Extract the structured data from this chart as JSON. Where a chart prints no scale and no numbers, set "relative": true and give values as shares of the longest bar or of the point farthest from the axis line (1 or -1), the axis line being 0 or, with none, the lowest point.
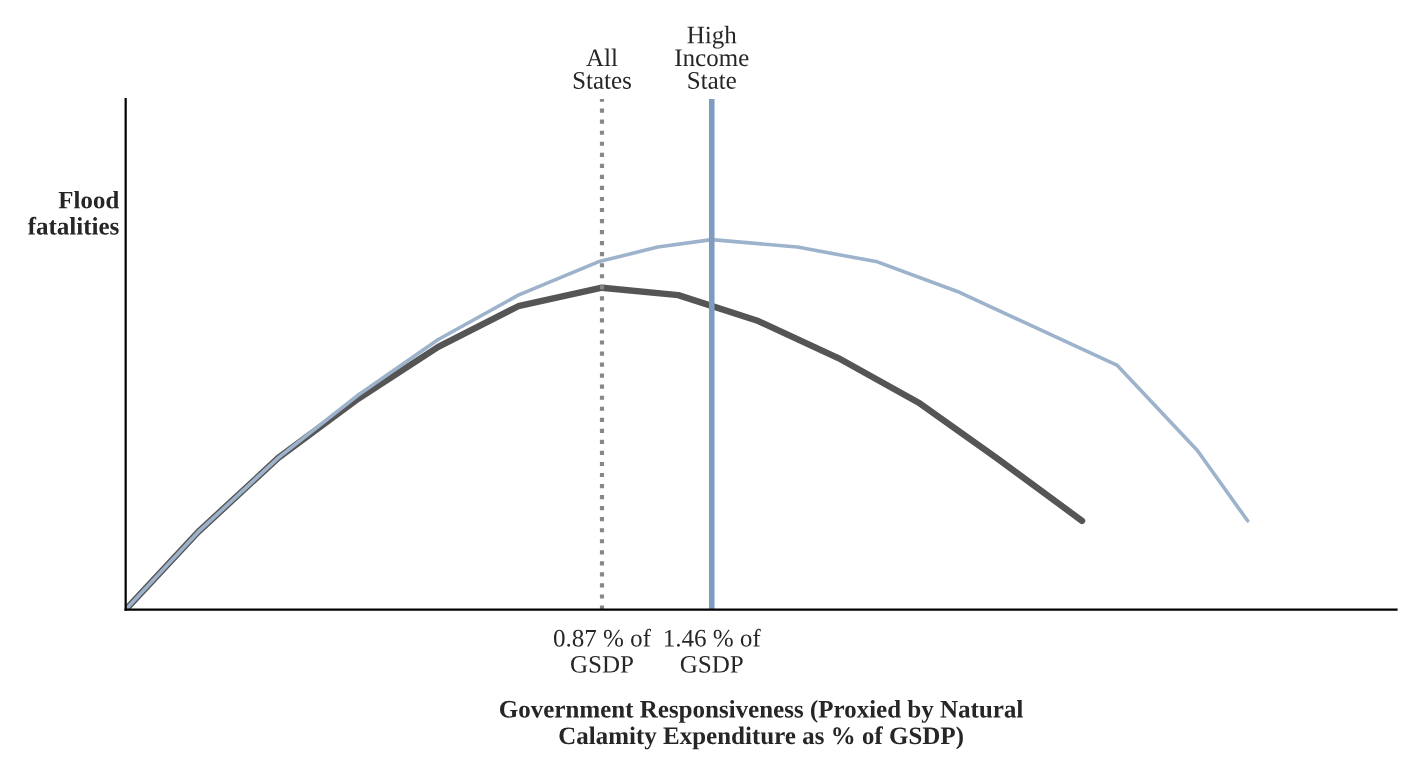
{
  "chart_data": {
    "type": "line",
    "relative": true,
    "ylabel": "Flood\nfatalities",
    "xlabel": "Government Responsiveness (Proxied by Natural\nCalamity Expenditure as % of GSDP)",
    "xlim": [
      -1.69,
      5.14
    ],
    "xticks": [
      {
        "value": 0.87,
        "label": "0.87 % of\nGSDP"
      },
      {
        "value": 1.46,
        "label": "1.46 % of\nGSDP"
      }
    ],
    "series": [
      {
        "color": "#555555",
        "x": [
          -1.69,
          -1.3,
          -0.87,
          -0.44,
          -0.01,
          0.42,
          0.87,
          1.28,
          1.71,
          2.14,
          2.57,
          2.99,
          3.45
        ],
        "values": [
          0,
          0.21,
          0.41,
          0.57,
          0.71,
          0.82,
          0.87,
          0.85,
          0.78,
          0.68,
          0.56,
          0.41,
          0.24
        ]
      },
      {
        "color": "#9db3cc",
        "x": [
          -1.69,
          -1.3,
          -0.87,
          -0.44,
          -0.01,
          0.42,
          0.85,
          1.17,
          1.46,
          1.92,
          2.35,
          2.78,
          3.21,
          3.64,
          4.07,
          4.34
        ],
        "values": [
          0,
          0.21,
          0.41,
          0.58,
          0.73,
          0.85,
          0.94,
          0.98,
          1,
          0.98,
          0.94,
          0.86,
          0.76,
          0.66,
          0.43,
          0.24
        ]
      }
    ],
    "ref_lines": [
      {
        "axis": "x",
        "value": 0.87,
        "label": "All\nStates",
        "color": "#888888",
        "line_style": "dotted"
      },
      {
        "axis": "x",
        "value": 1.46,
        "label": "High\nIncome\nState",
        "color": "#7f9cc0",
        "line_style": "solid"
      }
    ],
    "grid": false,
    "legend": false,
    "marker": "none",
    "line_style": "solid"
  }
}
